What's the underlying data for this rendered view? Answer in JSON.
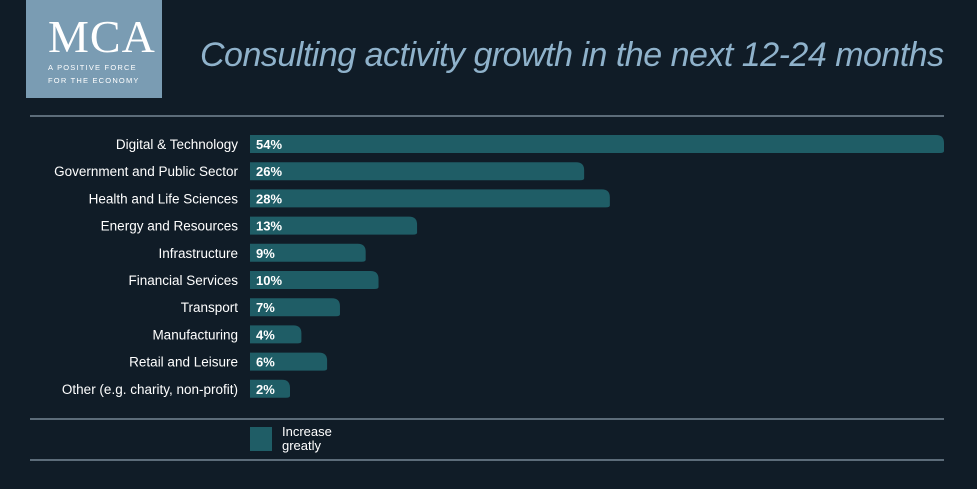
{
  "logo": {
    "mark": "MCA",
    "tagline_1": "A POSITIVE FORCE",
    "tagline_2": "FOR THE ECONOMY"
  },
  "colors": {
    "background": "#101c27",
    "bar": "#1f5d66",
    "logo_bg": "#7a9cb3",
    "title": "#8fb2cb",
    "rule": "#a9bccb"
  },
  "chart_data": {
    "type": "bar",
    "orientation": "horizontal",
    "title": "Consulting activity growth in the next 12-24 months",
    "categories": [
      "Digital & Technology",
      "Government and Public Sector",
      "Health and Life Sciences",
      "Energy and Resources",
      "Infrastructure",
      "Financial Services",
      "Transport",
      "Manufacturing",
      "Retail and Leisure",
      "Other (e.g. charity, non-profit)"
    ],
    "series": [
      {
        "name": "Increase greatly",
        "values": [
          54,
          26,
          28,
          13,
          9,
          10,
          7,
          4,
          6,
          2
        ],
        "labels": [
          "54%",
          "26%",
          "28%",
          "13%",
          "9%",
          "10%",
          "7%",
          "4%",
          "6%",
          "2%"
        ]
      }
    ],
    "xlim": [
      0,
      54
    ],
    "grid": false,
    "legend": "bottom-left"
  },
  "legend": {
    "label": "Increase greatly"
  }
}
